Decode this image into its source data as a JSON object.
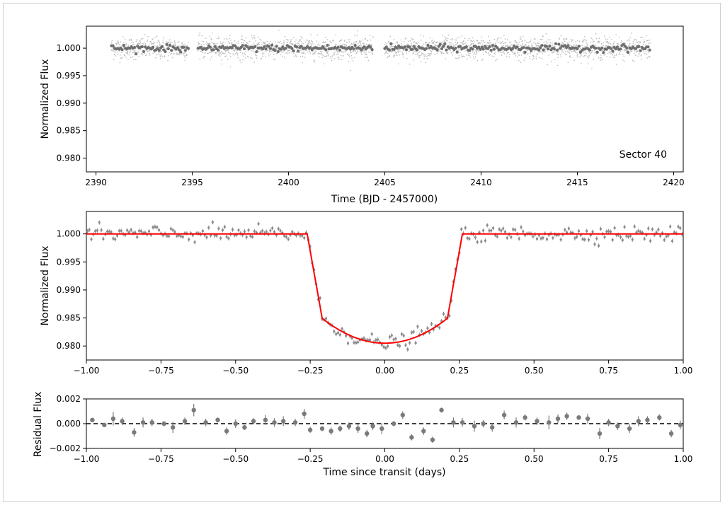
{
  "chart_data": [
    {
      "id": "lightcurve",
      "type": "scatter",
      "annotation": "Sector 40",
      "xlabel": "Time (BJD - 2457000)",
      "ylabel": "Normalized Flux",
      "xlim": [
        2389.5,
        2420.5
      ],
      "ylim": [
        0.9775,
        1.004
      ],
      "xticks": [
        2390,
        2395,
        2400,
        2405,
        2410,
        2415,
        2420
      ],
      "yticks": [
        0.98,
        0.985,
        0.99,
        0.995,
        1.0
      ],
      "segments": [
        [
          2390.8,
          2394.8
        ],
        [
          2395.3,
          2404.4
        ],
        [
          2405.0,
          2418.8
        ]
      ],
      "transit": {
        "center": 2395.05,
        "depth": 0.0195,
        "half_duration": 0.25
      },
      "baseline": 1.0,
      "scatter": 0.001,
      "colors": {
        "raw": "#b8b8b8",
        "binned": "#6e6e6e"
      }
    },
    {
      "id": "folded",
      "type": "scatter",
      "xlabel": "",
      "ylabel": "Normalized Flux",
      "xlim": [
        -1.0,
        1.0
      ],
      "ylim": [
        0.9775,
        1.004
      ],
      "xticks": [
        -1.0,
        -0.75,
        -0.5,
        -0.25,
        0.0,
        0.25,
        0.5,
        0.75,
        1.0
      ],
      "yticks": [
        0.98,
        0.985,
        0.99,
        0.995,
        1.0
      ],
      "model": {
        "depth": 0.0195,
        "t14_half": 0.26,
        "t23_half": 0.21,
        "limb_darkening": 0.35
      },
      "n_points": 300,
      "scatter": 0.0007,
      "colors": {
        "points": "#8a8a8a",
        "model": "#ff0000"
      }
    },
    {
      "id": "residuals",
      "type": "scatter",
      "xlabel": "Time since transit (days)",
      "ylabel": "Residual Flux",
      "xlim": [
        -1.0,
        1.0
      ],
      "ylim": [
        -0.002,
        0.002
      ],
      "xticks": [
        -1.0,
        -0.75,
        -0.5,
        -0.25,
        0.0,
        0.25,
        0.5,
        0.75,
        1.0
      ],
      "yticks": [
        -0.002,
        0.0,
        0.002
      ],
      "x": [
        -0.98,
        -0.94,
        -0.91,
        -0.88,
        -0.84,
        -0.81,
        -0.78,
        -0.74,
        -0.71,
        -0.67,
        -0.64,
        -0.6,
        -0.56,
        -0.53,
        -0.5,
        -0.47,
        -0.44,
        -0.4,
        -0.37,
        -0.34,
        -0.3,
        -0.27,
        -0.25,
        -0.21,
        -0.18,
        -0.15,
        -0.12,
        -0.09,
        -0.06,
        -0.04,
        -0.01,
        0.03,
        0.06,
        0.09,
        0.13,
        0.16,
        0.19,
        0.23,
        0.26,
        0.3,
        0.33,
        0.36,
        0.4,
        0.44,
        0.47,
        0.51,
        0.55,
        0.58,
        0.61,
        0.65,
        0.68,
        0.72,
        0.75,
        0.78,
        0.82,
        0.85,
        0.88,
        0.92,
        0.96,
        0.99
      ],
      "y": [
        0.0003,
        -0.0001,
        0.0004,
        0.0002,
        -0.0007,
        0.0001,
        0.0001,
        0.0,
        -0.0003,
        0.0002,
        0.0011,
        0.0001,
        0.0003,
        -0.0006,
        0.0,
        -0.0003,
        0.0002,
        0.0003,
        0.0001,
        0.0002,
        0.0001,
        0.0008,
        -0.0005,
        -0.0004,
        -0.0006,
        -0.0004,
        -0.0002,
        -0.0004,
        -0.0008,
        -0.0002,
        -0.0004,
        0.0,
        0.0007,
        -0.0011,
        -0.0006,
        -0.0013,
        0.0011,
        0.0001,
        0.0001,
        -0.0002,
        0.0,
        -0.0003,
        0.0007,
        0.0001,
        0.0005,
        0.0002,
        0.0001,
        0.0004,
        0.0006,
        0.0005,
        0.0004,
        -0.0008,
        0.0001,
        -0.0002,
        -0.0004,
        0.0002,
        0.0003,
        0.0005,
        -0.0008,
        -0.0001
      ],
      "err": [
        0.00015,
        0.0001,
        0.00055,
        0.0003,
        0.00035,
        0.0004,
        0.0003,
        0.0002,
        0.00045,
        0.0003,
        0.0005,
        0.0003,
        0.0002,
        0.0003,
        0.00035,
        0.0002,
        0.00025,
        0.0004,
        0.00035,
        0.0004,
        0.0003,
        0.0004,
        0.00025,
        0.0002,
        0.0003,
        0.00025,
        0.0003,
        0.00035,
        0.0003,
        0.0003,
        0.00045,
        0.0002,
        0.0003,
        0.00025,
        0.0003,
        0.00025,
        0.0002,
        0.0004,
        0.00035,
        0.00045,
        0.0003,
        0.00035,
        0.00035,
        0.0004,
        0.00025,
        0.0003,
        0.00055,
        0.00035,
        0.0003,
        0.0002,
        0.0004,
        0.00045,
        0.0003,
        0.0003,
        0.00035,
        0.0004,
        0.0003,
        0.00025,
        0.0003,
        0.00035
      ],
      "zero_line": 0.0,
      "colors": {
        "points": "#7a7a7a",
        "zero_line": "#000000"
      }
    }
  ]
}
